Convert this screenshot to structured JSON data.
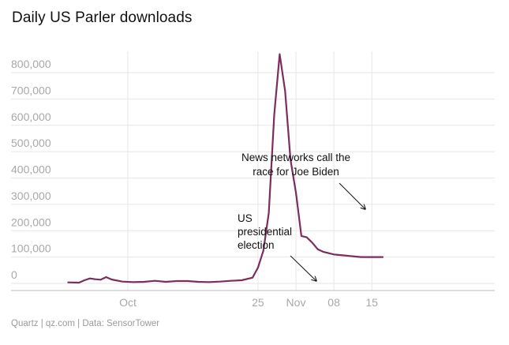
{
  "title": "Daily US Parler downloads",
  "source": "Quartz | qz.com | Data: SensorTower",
  "chart_data": {
    "type": "line",
    "title": "Daily US Parler downloads",
    "xlabel": "",
    "ylabel": "",
    "ylim": [
      0,
      900000
    ],
    "yticks": [
      0,
      100000,
      200000,
      300000,
      400000,
      500000,
      600000,
      700000,
      800000
    ],
    "ytick_labels": [
      "0",
      "100,000",
      "200,000",
      "300,000",
      "400,000",
      "500,000",
      "600,000",
      "700,000",
      "800,000"
    ],
    "xlim": [
      "2020-09-23",
      "2020-11-18"
    ],
    "xticks": [
      "2020-10-01",
      "2020-10-25",
      "2020-11-01",
      "2020-11-08",
      "2020-11-15"
    ],
    "xtick_labels": [
      "Oct",
      "25",
      "Nov",
      "08",
      "15"
    ],
    "grid": true,
    "color": "#7b2d5c",
    "series": [
      {
        "x": [
          "2020-09-20",
          "2020-09-22",
          "2020-09-23",
          "2020-09-24",
          "2020-09-25",
          "2020-09-26",
          "2020-09-27",
          "2020-09-28",
          "2020-09-30",
          "2020-10-02",
          "2020-10-04",
          "2020-10-06",
          "2020-10-08",
          "2020-10-10",
          "2020-10-12",
          "2020-10-14",
          "2020-10-16",
          "2020-10-18",
          "2020-10-20",
          "2020-10-22",
          "2020-10-24",
          "2020-10-25",
          "2020-10-26",
          "2020-10-27",
          "2020-10-28",
          "2020-10-29",
          "2020-10-30",
          "2020-10-31",
          "2020-11-01",
          "2020-11-02",
          "2020-11-03",
          "2020-11-04",
          "2020-11-05",
          "2020-11-06",
          "2020-11-07",
          "2020-11-08",
          "2020-11-09",
          "2020-11-10",
          "2020-11-11",
          "2020-11-12",
          "2020-11-13",
          "2020-11-14",
          "2020-11-15",
          "2020-11-16",
          "2020-11-17"
        ],
        "values": [
          4000,
          3000,
          12000,
          19000,
          16000,
          14000,
          24000,
          15000,
          7000,
          5000,
          6000,
          10000,
          6000,
          9000,
          9000,
          6000,
          5000,
          7000,
          10000,
          12000,
          22000,
          60000,
          125000,
          268000,
          640000,
          870000,
          730000,
          470000,
          345000,
          180000,
          175000,
          155000,
          130000,
          120000,
          115000,
          110000,
          108000,
          106000,
          104000,
          102000,
          100000,
          100000,
          100000,
          100000,
          100000
        ]
      }
    ],
    "annotations": [
      {
        "lines": [
          "News networks call the",
          "race for Joe Biden"
        ],
        "date": "2020-11-07"
      },
      {
        "lines": [
          "US",
          "presidential",
          "election"
        ],
        "date": "2020-11-03"
      }
    ]
  }
}
